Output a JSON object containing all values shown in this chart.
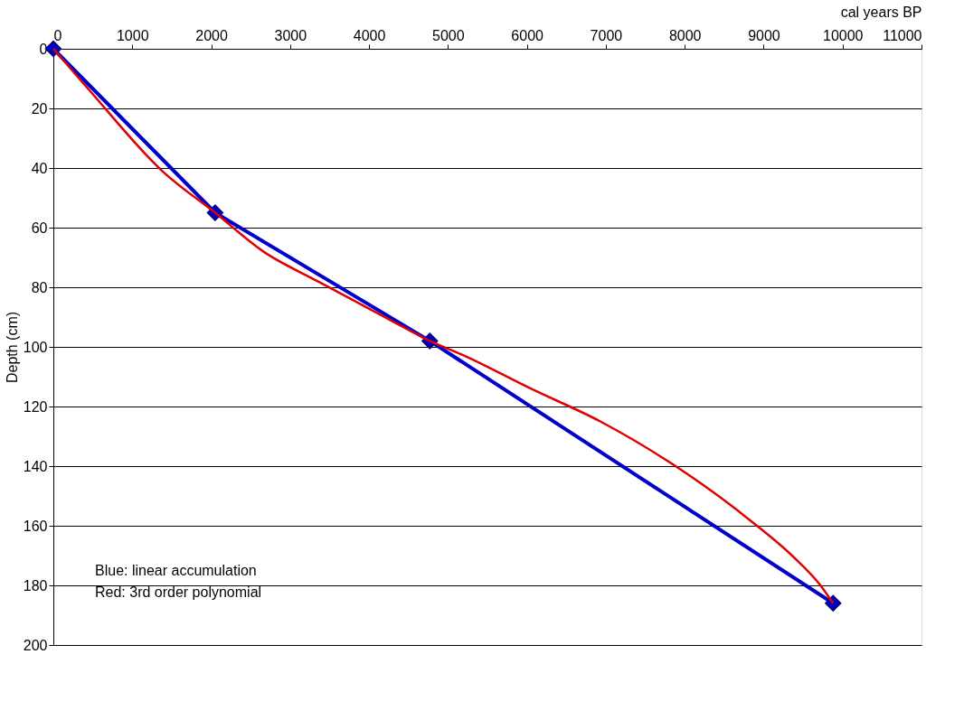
{
  "chart_data": {
    "type": "line",
    "xlabel": "cal years BP",
    "ylabel": "Depth (cm)",
    "xlim": [
      0,
      11000
    ],
    "xticks": [
      0,
      1000,
      2000,
      3000,
      4000,
      5000,
      6000,
      7000,
      8000,
      9000,
      10000,
      11000
    ],
    "ylim": [
      200,
      0
    ],
    "yticks": [
      0,
      20,
      40,
      60,
      80,
      100,
      120,
      140,
      160,
      180,
      200
    ],
    "grid": "y",
    "annotations": [
      "Blue: linear accumulation\nRed: 3rd order polynomial"
    ],
    "series": [
      {
        "color": "#0000cc",
        "marker": "diamond",
        "x": [
          0,
          2050,
          4770,
          9880
        ],
        "values": [
          0,
          55,
          98,
          186
        ]
      },
      {
        "color": "#e00000",
        "marker": "none",
        "x": [
          0,
          460,
          1380,
          2050,
          2660,
          3350,
          4270,
          4770,
          5210,
          6050,
          6930,
          7940,
          8820,
          9360,
          9720,
          9880
        ],
        "values": [
          0,
          14,
          41,
          55,
          68,
          78,
          91,
          98,
          103,
          114,
          125,
          141,
          158,
          170,
          180,
          186
        ]
      }
    ]
  }
}
